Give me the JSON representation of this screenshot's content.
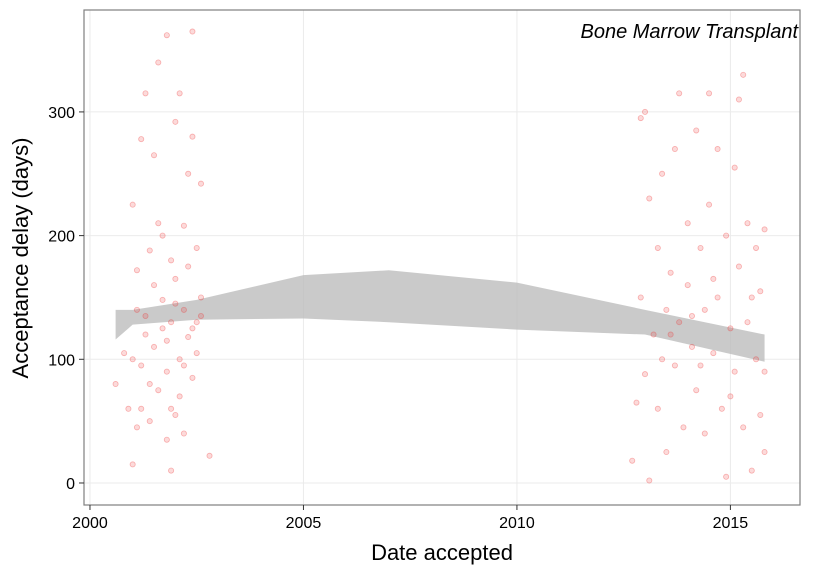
{
  "chart_data": {
    "type": "scatter",
    "annotation": "Bone Marrow Transplant",
    "x_label": "Date accepted",
    "y_label": "Acceptance delay (days)",
    "xlim": [
      1999.86,
      2016.63
    ],
    "ylim": [
      -17.8,
      382.4
    ],
    "xticks": [
      2000,
      2005,
      2010,
      2015
    ],
    "yticks": [
      0,
      100,
      200,
      300
    ],
    "grid": true,
    "color": "#ee3333",
    "band_color": "#bdbdbd",
    "x": [
      2000.6,
      2000.8,
      2000.9,
      2001.0,
      2001.0,
      2001.1,
      2001.1,
      2001.2,
      2001.2,
      2001.3,
      2001.3,
      2001.4,
      2001.4,
      2001.5,
      2001.5,
      2001.6,
      2001.6,
      2001.7,
      2001.7,
      2001.8,
      2001.8,
      2001.8,
      2001.9,
      2001.9,
      2002.0,
      2002.0,
      2002.0,
      2002.1,
      2002.1,
      2002.2,
      2002.2,
      2002.2,
      2002.3,
      2002.3,
      2002.4,
      2002.4,
      2002.4,
      2002.5,
      2002.5,
      2002.6,
      2002.6,
      2002.8,
      2001.0,
      2001.3,
      2001.5,
      2001.7,
      2001.9,
      2002.1,
      2002.3,
      2002.5,
      2001.2,
      2001.6,
      2001.8,
      2002.0,
      2002.2,
      2001.4,
      2002.4,
      2001.1,
      2001.9,
      2002.6,
      2012.7,
      2012.8,
      2012.9,
      2012.9,
      2013.0,
      2013.0,
      2013.1,
      2013.1,
      2013.2,
      2013.3,
      2013.3,
      2013.4,
      2013.5,
      2013.5,
      2013.6,
      2013.7,
      2013.7,
      2013.8,
      2013.8,
      2013.9,
      2014.0,
      2014.0,
      2014.1,
      2014.2,
      2014.2,
      2014.3,
      2014.4,
      2014.4,
      2014.5,
      2014.5,
      2014.6,
      2014.7,
      2014.7,
      2014.8,
      2014.9,
      2014.9,
      2015.0,
      2015.1,
      2015.1,
      2015.2,
      2015.2,
      2015.3,
      2015.3,
      2015.4,
      2015.4,
      2015.5,
      2015.5,
      2015.6,
      2015.6,
      2015.7,
      2015.7,
      2015.8,
      2015.8,
      2015.8,
      2013.4,
      2014.1,
      2014.6,
      2015.0,
      2013.6,
      2014.3
    ],
    "values": [
      80,
      105,
      60,
      225,
      15,
      172,
      140,
      95,
      278,
      315,
      120,
      50,
      188,
      265,
      110,
      340,
      75,
      148,
      200,
      362,
      90,
      35,
      10,
      130,
      292,
      165,
      55,
      315,
      100,
      208,
      140,
      40,
      250,
      118,
      365,
      280,
      85,
      190,
      130,
      242,
      150,
      22,
      100,
      135,
      160,
      125,
      180,
      70,
      175,
      105,
      60,
      210,
      115,
      145,
      95,
      80,
      125,
      45,
      60,
      135,
      18,
      65,
      150,
      295,
      300,
      88,
      230,
      2,
      120,
      190,
      60,
      250,
      140,
      25,
      170,
      270,
      95,
      315,
      130,
      45,
      210,
      160,
      110,
      285,
      75,
      190,
      140,
      40,
      315,
      225,
      105,
      270,
      150,
      60,
      200,
      5,
      125,
      255,
      90,
      310,
      175,
      330,
      45,
      210,
      130,
      150,
      10,
      190,
      100,
      55,
      155,
      205,
      90,
      25,
      100,
      135,
      165,
      70,
      120,
      95
    ],
    "band": {
      "x": [
        2000.6,
        2001.0,
        2002.5,
        2005,
        2007,
        2010,
        2013,
        2015.8
      ],
      "upper": [
        140,
        140,
        148,
        168,
        172,
        162,
        140,
        120
      ],
      "lower": [
        116,
        128,
        132,
        133,
        130,
        124,
        120,
        98
      ]
    }
  }
}
